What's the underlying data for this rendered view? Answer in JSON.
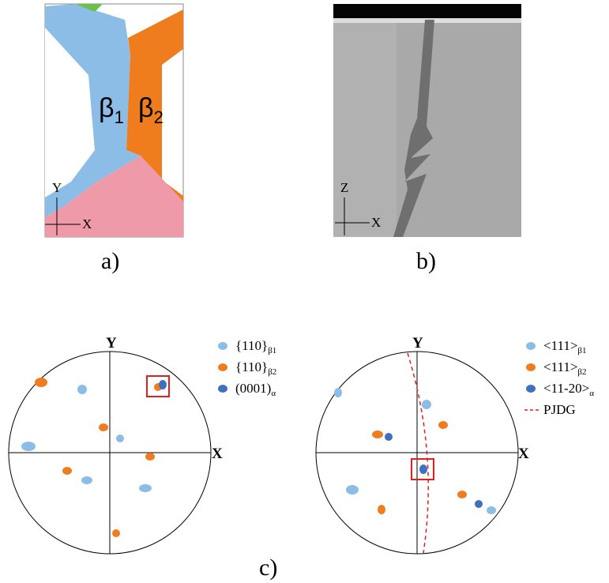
{
  "panel_a": {
    "grain_1": {
      "symbol": "β",
      "sub": "1"
    },
    "grain_2": {
      "symbol": "β",
      "sub": "2"
    },
    "axis_y": "Y",
    "axis_x": "X",
    "caption": "a)"
  },
  "panel_b": {
    "axis_z": "Z",
    "axis_x": "X",
    "caption": "b)"
  },
  "panel_c": {
    "caption": "c)",
    "pole_figures": [
      {
        "axis_y": "Y",
        "axis_x": "X",
        "legend": [
          {
            "label": "{110}",
            "sub": "β1"
          },
          {
            "label": "{110}",
            "sub": "β2"
          },
          {
            "label": "(0001)",
            "sub": "α"
          }
        ]
      },
      {
        "axis_y": "Y",
        "axis_x": "X",
        "legend": [
          {
            "label": "<111>",
            "sub": "β1"
          },
          {
            "label": "<111>",
            "sub": "β2"
          },
          {
            "label": "<11-20>",
            "sub": "α"
          },
          {
            "label": "PJDG"
          }
        ]
      }
    ]
  }
}
